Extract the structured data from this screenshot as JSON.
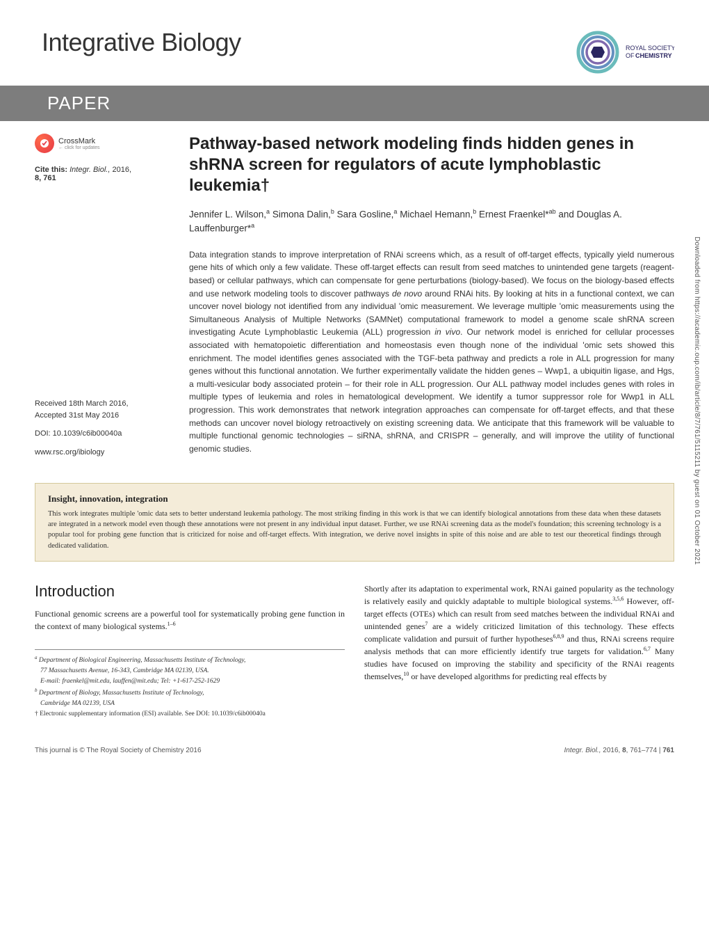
{
  "journal": {
    "name": "Integrative Biology",
    "section": "PAPER",
    "publisher_logo_label": "ROYAL SOCIETY OF CHEMISTRY"
  },
  "sidebar_download": "Downloaded from https://academic.oup.com/ib/article/8/7/761/5115211 by guest on 01 October 2021",
  "crossmark": {
    "label": "CrossMark",
    "sublabel": "← click for updates"
  },
  "citation": {
    "prefix": "Cite this:",
    "journal_abbrev": "Integr. Biol.,",
    "year": "2016,",
    "vol_page": "8, 761"
  },
  "meta": {
    "received": "Received 18th March 2016,",
    "accepted": "Accepted 31st May 2016",
    "doi": "DOI: 10.1039/c6ib00040a",
    "url": "www.rsc.org/ibiology"
  },
  "article": {
    "title": "Pathway-based network modeling finds hidden genes in shRNA screen for regulators of acute lymphoblastic leukemia†",
    "authors_html": "Jennifer L. Wilson,<sup>a</sup> Simona Dalin,<sup>b</sup> Sara Gosline,<sup>a</sup> Michael Hemann,<sup>b</sup> Ernest Fraenkel*<sup>ab</sup> and Douglas A. Lauffenburger*<sup>a</sup>",
    "abstract": "Data integration stands to improve interpretation of RNAi screens which, as a result of off-target effects, typically yield numerous gene hits of which only a few validate. These off-target effects can result from seed matches to unintended gene targets (reagent-based) or cellular pathways, which can compensate for gene perturbations (biology-based). We focus on the biology-based effects and use network modeling tools to discover pathways de novo around RNAi hits. By looking at hits in a functional context, we can uncover novel biology not identified from any individual 'omic measurement. We leverage multiple 'omic measurements using the Simultaneous Analysis of Multiple Networks (SAMNet) computational framework to model a genome scale shRNA screen investigating Acute Lymphoblastic Leukemia (ALL) progression in vivo. Our network model is enriched for cellular processes associated with hematopoietic differentiation and homeostasis even though none of the individual 'omic sets showed this enrichment. The model identifies genes associated with the TGF-beta pathway and predicts a role in ALL progression for many genes without this functional annotation. We further experimentally validate the hidden genes – Wwp1, a ubiquitin ligase, and Hgs, a multi-vesicular body associated protein – for their role in ALL progression. Our ALL pathway model includes genes with roles in multiple types of leukemia and roles in hematological development. We identify a tumor suppressor role for Wwp1 in ALL progression. This work demonstrates that network integration approaches can compensate for off-target effects, and that these methods can uncover novel biology retroactively on existing screening data. We anticipate that this framework will be valuable to multiple functional genomic technologies – siRNA, shRNA, and CRISPR – generally, and will improve the utility of functional genomic studies."
  },
  "insight": {
    "title": "Insight, innovation, integration",
    "text": "This work integrates multiple 'omic data sets to better understand leukemia pathology. The most striking finding in this work is that we can identify biological annotations from these data when these datasets are integrated in a network model even though these annotations were not present in any individual input dataset. Further, we use RNAi screening data as the model's foundation; this screening technology is a popular tool for probing gene function that is criticized for noise and off-target effects. With integration, we derive novel insights in spite of this noise and are able to test our theoretical findings through dedicated validation."
  },
  "introduction": {
    "heading": "Introduction",
    "left_para": "Functional genomic screens are a powerful tool for systematically probing gene function in the context of many biological systems.",
    "left_refs": "1–6",
    "right_para": "Shortly after its adaptation to experimental work, RNAi gained popularity as the technology is relatively easily and quickly adaptable to multiple biological systems.3,5,6 However, off-target effects (OTEs) which can result from seed matches between the individual RNAi and unintended genes7 are a widely criticized limitation of this technology. These effects complicate validation and pursuit of further hypotheses6,8,9 and thus, RNAi screens require analysis methods that can more efficiently identify true targets for validation.6,7 Many studies have focused on improving the stability and specificity of the RNAi reagents themselves,10 or have developed algorithms for predicting real effects by"
  },
  "affiliations": {
    "a_line1": "Department of Biological Engineering, Massachusetts Institute of Technology,",
    "a_line2": "77 Massachusetts Avenue, 16-343, Cambridge MA 02139, USA.",
    "a_email": "E-mail: fraenkel@mit.edu, lauffen@mit.edu; Tel: +1-617-252-1629",
    "b_line1": "Department of Biology, Massachusetts Institute of Technology,",
    "b_line2": "Cambridge MA 02139, USA",
    "esi": "† Electronic supplementary information (ESI) available. See DOI: 10.1039/c6ib00040a"
  },
  "footer": {
    "left": "This journal is © The Royal Society of Chemistry 2016",
    "right_journal": "Integr. Biol.,",
    "right_year": "2016,",
    "right_vol": "8",
    "right_pages": ", 761–774  |  ",
    "right_pagenum": "761"
  },
  "colors": {
    "band_bg": "#7d7d7d",
    "insight_bg": "#f4ecd9",
    "insight_border": "#d4c89a",
    "crossmark_outer": "#e63946"
  }
}
